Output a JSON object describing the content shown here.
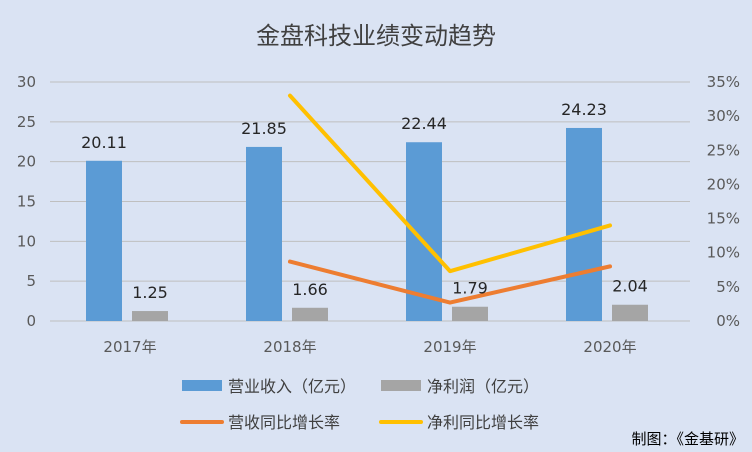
{
  "chart_data": {
    "type": "bar",
    "title": "金盘科技业绩变动趋势",
    "categories": [
      "2017年",
      "2018年",
      "2019年",
      "2020年"
    ],
    "series": [
      {
        "name": "营业收入（亿元）",
        "type": "bar",
        "axis": "left",
        "color": "#5b9bd5",
        "values": [
          20.11,
          21.85,
          22.44,
          24.23
        ],
        "labels": [
          "20.11",
          "21.85",
          "22.44",
          "24.23"
        ]
      },
      {
        "name": "净利润（亿元）",
        "type": "bar",
        "axis": "left",
        "color": "#a5a5a5",
        "values": [
          1.25,
          1.66,
          1.79,
          2.04
        ],
        "labels": [
          "1.25",
          "1.66",
          "1.79",
          "2.04"
        ]
      },
      {
        "name": "营收同比增长率",
        "type": "line",
        "axis": "right",
        "color": "#ed7d31",
        "values": [
          null,
          0.087,
          0.027,
          0.08
        ]
      },
      {
        "name": "净利同比增长率",
        "type": "line",
        "axis": "right",
        "color": "#ffc000",
        "values": [
          null,
          0.33,
          0.073,
          0.14
        ]
      }
    ],
    "y_left": {
      "min": 0,
      "max": 30,
      "ticks": [
        0,
        5,
        10,
        15,
        20,
        25,
        30
      ],
      "tick_labels": [
        "0",
        "5",
        "10",
        "15",
        "20",
        "25",
        "30"
      ]
    },
    "y_right": {
      "min": 0,
      "max": 0.35,
      "ticks": [
        0,
        0.05,
        0.1,
        0.15,
        0.2,
        0.25,
        0.3,
        0.35
      ],
      "tick_labels": [
        "0%",
        "5%",
        "10%",
        "15%",
        "20%",
        "25%",
        "30%",
        "35%"
      ]
    },
    "grid": true,
    "legend_position": "bottom",
    "source": "制图：《金基研》"
  }
}
